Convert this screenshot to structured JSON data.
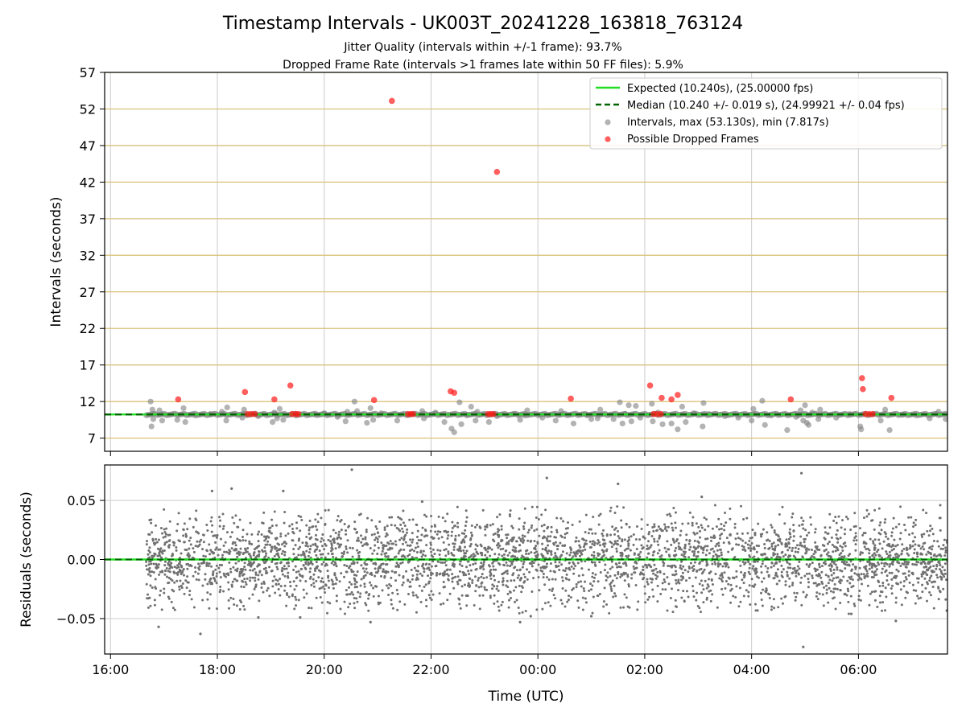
{
  "chart_data": [
    {
      "type": "scatter",
      "title": "Timestamp Intervals - UK003T_20241228_163818_763124",
      "subtitle_lines": [
        "Jitter Quality (intervals within +/-1 frame): 93.7%",
        "Dropped Frame Rate (intervals >1 frames late within 50 FF files): 5.9%"
      ],
      "ylabel": "Intervals (seconds)",
      "xlabel": "",
      "xlim": [
        "16:00",
        "07:40"
      ],
      "ylim": [
        5.2,
        57
      ],
      "yticks": [
        7,
        12,
        17,
        22,
        27,
        32,
        37,
        42,
        47,
        52,
        57
      ],
      "grid": true,
      "legend_placement": "top-right",
      "legend": [
        "Expected (10.240s), (25.00000 fps)",
        "Median (10.240 +/- 0.019 s), (24.99921 +/- 0.04 fps)",
        "Intervals, max (53.130s), min (7.817s)",
        "Possible Dropped Frames"
      ],
      "expected_interval": 10.24,
      "median_interval": 10.24,
      "data_start": "16:40",
      "series": [
        {
          "name": "Intervals, max (53.130s), min (7.817s)",
          "note_points": "x as HH:MM, y in seconds",
          "points": [
            [
              "16:45",
              12.0
            ],
            [
              "16:46",
              8.6
            ],
            [
              "16:47",
              10.9
            ],
            [
              "16:48",
              9.6
            ],
            [
              "16:55",
              10.8
            ],
            [
              "16:58",
              9.4
            ],
            [
              "17:15",
              9.5
            ],
            [
              "17:22",
              11.1
            ],
            [
              "17:24",
              9.2
            ],
            [
              "17:35",
              10.1
            ],
            [
              "17:52",
              10.3
            ],
            [
              "18:05",
              10.6
            ],
            [
              "18:10",
              9.4
            ],
            [
              "18:11",
              11.2
            ],
            [
              "18:28",
              9.8
            ],
            [
              "18:30",
              10.9
            ],
            [
              "18:46",
              10.0
            ],
            [
              "19:02",
              9.2
            ],
            [
              "19:04",
              10.5
            ],
            [
              "19:07",
              9.7
            ],
            [
              "19:10",
              11.0
            ],
            [
              "19:14",
              9.5
            ],
            [
              "19:28",
              10.1
            ],
            [
              "19:50",
              10.2
            ],
            [
              "20:00",
              10.4
            ],
            [
              "20:15",
              9.9
            ],
            [
              "20:24",
              9.3
            ],
            [
              "20:26",
              10.6
            ],
            [
              "20:34",
              12.0
            ],
            [
              "20:37",
              10.7
            ],
            [
              "20:48",
              9.1
            ],
            [
              "20:52",
              11.1
            ],
            [
              "20:55",
              9.5
            ],
            [
              "21:04",
              10.4
            ],
            [
              "21:22",
              9.4
            ],
            [
              "21:34",
              10.2
            ],
            [
              "21:50",
              10.7
            ],
            [
              "21:52",
              9.7
            ],
            [
              "22:05",
              10.5
            ],
            [
              "22:15",
              9.2
            ],
            [
              "22:23",
              8.3
            ],
            [
              "22:26",
              7.8
            ],
            [
              "22:32",
              11.9
            ],
            [
              "22:34",
              8.9
            ],
            [
              "22:40",
              10.2
            ],
            [
              "22:45",
              11.3
            ],
            [
              "22:50",
              9.4
            ],
            [
              "22:52",
              10.6
            ],
            [
              "23:05",
              9.2
            ],
            [
              "23:14",
              10.0
            ],
            [
              "23:33",
              10.3
            ],
            [
              "23:40",
              9.5
            ],
            [
              "23:45",
              10.1
            ],
            [
              "23:48",
              10.8
            ],
            [
              "24:05",
              9.8
            ],
            [
              "24:20",
              9.4
            ],
            [
              "24:26",
              10.7
            ],
            [
              "24:40",
              9.0
            ],
            [
              "24:55",
              10.2
            ],
            [
              "25:00",
              9.6
            ],
            [
              "25:07",
              9.7
            ],
            [
              "25:10",
              10.9
            ],
            [
              "25:25",
              9.6
            ],
            [
              "25:32",
              11.9
            ],
            [
              "25:35",
              9.0
            ],
            [
              "25:38",
              10.3
            ],
            [
              "25:42",
              11.5
            ],
            [
              "25:45",
              9.3
            ],
            [
              "25:50",
              11.4
            ],
            [
              "25:55",
              9.8
            ],
            [
              "26:08",
              11.7
            ],
            [
              "26:09",
              9.3
            ],
            [
              "26:15",
              10.5
            ],
            [
              "26:20",
              8.9
            ],
            [
              "26:30",
              9.0
            ],
            [
              "26:37",
              8.2
            ],
            [
              "26:42",
              11.3
            ],
            [
              "26:46",
              9.2
            ],
            [
              "26:55",
              10.4
            ],
            [
              "27:05",
              8.6
            ],
            [
              "27:06",
              11.8
            ],
            [
              "27:12",
              10.3
            ],
            [
              "27:30",
              10.0
            ],
            [
              "27:45",
              9.8
            ],
            [
              "28:00",
              9.4
            ],
            [
              "28:02",
              11.0
            ],
            [
              "28:12",
              12.1
            ],
            [
              "28:15",
              8.8
            ],
            [
              "28:22",
              10.1
            ],
            [
              "28:40",
              8.1
            ],
            [
              "28:50",
              9.9
            ],
            [
              "28:52",
              10.2
            ],
            [
              "28:55",
              10.8
            ],
            [
              "28:58",
              9.4
            ],
            [
              "29:00",
              11.5
            ],
            [
              "29:02",
              9.1
            ],
            [
              "29:04",
              8.8
            ],
            [
              "29:08",
              10.5
            ],
            [
              "29:15",
              9.6
            ],
            [
              "29:17",
              10.9
            ],
            [
              "29:35",
              9.8
            ],
            [
              "29:50",
              10.3
            ],
            [
              "30:02",
              8.6
            ],
            [
              "30:03",
              8.2
            ],
            [
              "30:25",
              9.4
            ],
            [
              "30:30",
              10.9
            ],
            [
              "30:35",
              8.1
            ],
            [
              "30:50",
              10.2
            ],
            [
              "31:05",
              10.1
            ],
            [
              "31:20",
              9.7
            ],
            [
              "31:30",
              10.6
            ],
            [
              "31:38",
              9.6
            ]
          ]
        },
        {
          "name": "Possible Dropped Frames",
          "points": [
            [
              "17:16",
              12.3
            ],
            [
              "18:31",
              13.3
            ],
            [
              "18:34",
              10.3
            ],
            [
              "18:38",
              10.3
            ],
            [
              "18:42",
              10.3
            ],
            [
              "19:04",
              12.3
            ],
            [
              "19:22",
              14.2
            ],
            [
              "19:24",
              10.3
            ],
            [
              "19:28",
              10.3
            ],
            [
              "19:31",
              10.3
            ],
            [
              "20:56",
              12.2
            ],
            [
              "21:16",
              53.1
            ],
            [
              "21:34",
              10.3
            ],
            [
              "21:37",
              10.3
            ],
            [
              "21:40",
              10.3
            ],
            [
              "22:22",
              13.4
            ],
            [
              "22:26",
              13.2
            ],
            [
              "23:04",
              10.3
            ],
            [
              "23:07",
              10.3
            ],
            [
              "23:10",
              10.3
            ],
            [
              "23:14",
              43.4
            ],
            [
              "24:37",
              12.4
            ],
            [
              "26:06",
              14.2
            ],
            [
              "26:10",
              10.3
            ],
            [
              "26:14",
              10.3
            ],
            [
              "26:18",
              10.3
            ],
            [
              "26:19",
              12.5
            ],
            [
              "26:30",
              12.3
            ],
            [
              "26:37",
              12.9
            ],
            [
              "28:44",
              12.3
            ],
            [
              "30:04",
              15.2
            ],
            [
              "30:05",
              13.7
            ],
            [
              "30:08",
              10.3
            ],
            [
              "30:12",
              10.3
            ],
            [
              "30:16",
              10.3
            ],
            [
              "30:37",
              12.5
            ]
          ]
        }
      ]
    },
    {
      "type": "scatter",
      "ylabel": "Residuals (seconds)",
      "xlabel": "Time (UTC)",
      "xticks": [
        "16:00",
        "18:00",
        "20:00",
        "22:00",
        "00:00",
        "02:00",
        "04:00",
        "06:00"
      ],
      "ylim": [
        -0.08,
        0.08
      ],
      "yticks": [
        "0.05",
        "0.00",
        "−0.05"
      ],
      "ytick_values": [
        0.05,
        0.0,
        -0.05
      ],
      "grid": true,
      "residual_spread_sd": 0.019,
      "residual_count": 3700,
      "series": [
        {
          "name": "",
          "note": "dense cloud of residuals centred on 0.00 with sd ~0.019 s from 16:40 to 07:40; notable outliers listed",
          "outliers": [
            [
              "16:54",
              -0.057
            ],
            [
              "17:41",
              -0.063
            ],
            [
              "17:54",
              0.058
            ],
            [
              "18:16",
              0.06
            ],
            [
              "18:46",
              -0.049
            ],
            [
              "19:14",
              0.058
            ],
            [
              "19:33",
              -0.049
            ],
            [
              "20:31",
              0.076
            ],
            [
              "20:52",
              -0.053
            ],
            [
              "21:50",
              0.049
            ],
            [
              "23:40",
              -0.053
            ],
            [
              "23:52",
              -0.048
            ],
            [
              "24:10",
              0.069
            ],
            [
              "25:00",
              -0.048
            ],
            [
              "25:30",
              0.064
            ],
            [
              "27:04",
              0.053
            ],
            [
              "28:56",
              0.073
            ],
            [
              "28:58",
              -0.074
            ],
            [
              "29:52",
              -0.046
            ],
            [
              "30:42",
              -0.052
            ]
          ]
        }
      ]
    }
  ]
}
